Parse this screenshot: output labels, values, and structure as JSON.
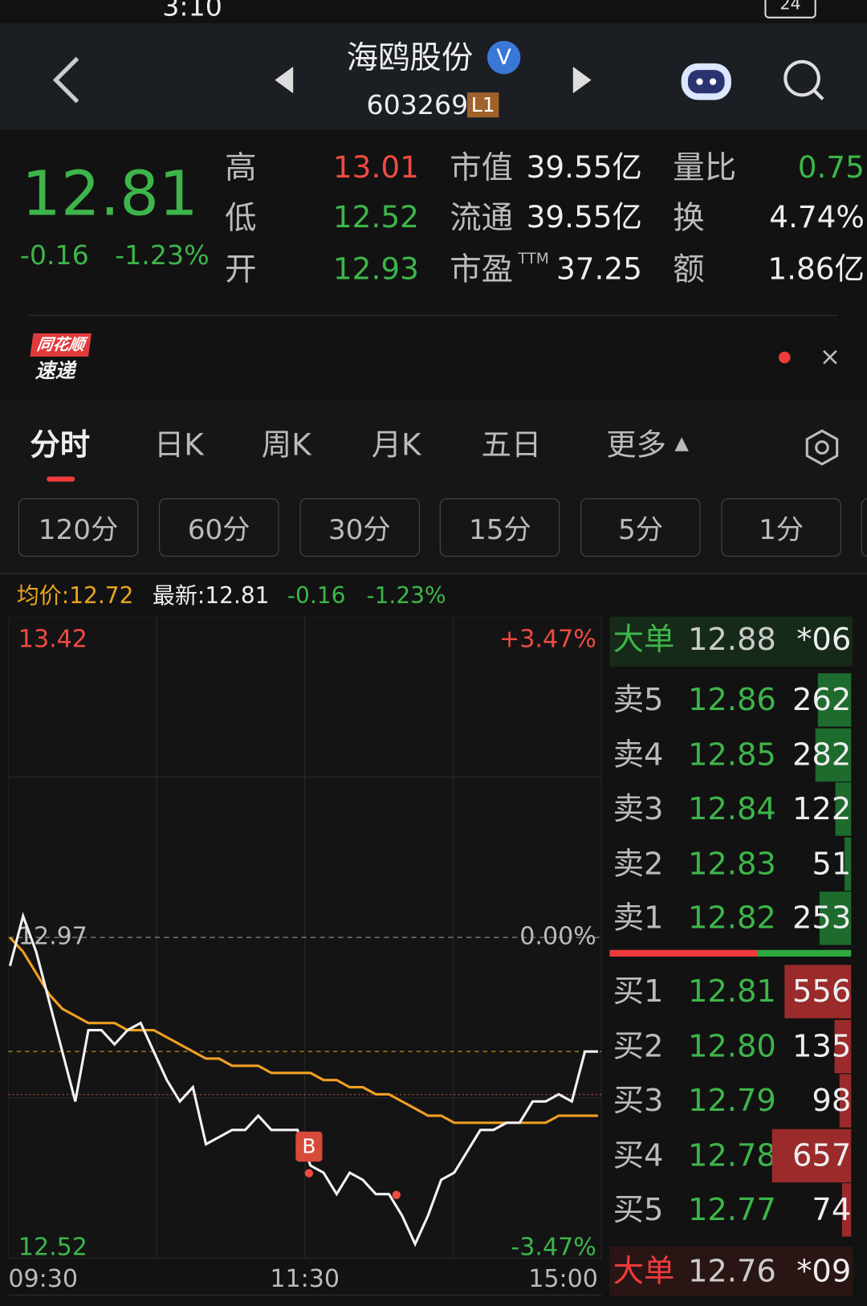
{
  "status": {
    "time": "3:10",
    "battery": "24"
  },
  "header": {
    "name": "海鸥股份",
    "verified": "V",
    "code": "603269",
    "badge": "L1"
  },
  "quote": {
    "price": "12.81",
    "change": "-0.16",
    "pct": "-1.23%",
    "stats": [
      [
        {
          "label": "高",
          "value": "13.01"
        },
        {
          "label": "低",
          "value": "12.52"
        },
        {
          "label": "开",
          "value": "12.93"
        }
      ],
      [
        {
          "label": "市值",
          "value": "39.55亿"
        },
        {
          "label": "流通",
          "value": "39.55亿"
        },
        {
          "label": "市盈",
          "sup": "TTM",
          "value": "37.25"
        }
      ],
      [
        {
          "label": "量比",
          "value": "0.75"
        },
        {
          "label": "换",
          "value": "4.74%"
        },
        {
          "label": "额",
          "value": "1.86亿"
        }
      ]
    ]
  },
  "news": {
    "logo_top": "同花顺",
    "logo_bottom": "速递"
  },
  "tabs": [
    "分时",
    "日K",
    "周K",
    "月K",
    "五日",
    "更多"
  ],
  "periods": [
    "120分",
    "60分",
    "30分",
    "15分",
    "5分",
    "1分"
  ],
  "info": {
    "avg": "均价:12.72",
    "latest": "最新:12.81",
    "change": "-0.16",
    "pct": "-1.23%"
  },
  "chart_data": {
    "type": "line",
    "ylim": [
      12.52,
      13.42
    ],
    "yticks": [
      13.42,
      12.97,
      12.52
    ],
    "right_labels": [
      "+3.47%",
      "0.00%",
      "-3.47%"
    ],
    "x_labels": [
      "09:30",
      "11:30",
      "15:00"
    ],
    "marker": "B",
    "last_price": 12.81,
    "series": [
      {
        "name": "price",
        "color": "#f2f2f2",
        "values": [
          12.93,
          13.0,
          12.95,
          12.88,
          12.81,
          12.74,
          12.84,
          12.84,
          12.82,
          12.84,
          12.85,
          12.81,
          12.77,
          12.74,
          12.76,
          12.68,
          12.69,
          12.7,
          12.7,
          12.72,
          12.7,
          12.7,
          12.7,
          12.65,
          12.64,
          12.61,
          12.64,
          12.63,
          12.61,
          12.61,
          12.58,
          12.54,
          12.58,
          12.63,
          12.64,
          12.67,
          12.7,
          12.7,
          12.71,
          12.71,
          12.74,
          12.74,
          12.75,
          12.74,
          12.81,
          12.81
        ]
      },
      {
        "name": "avg",
        "color": "#f0a020",
        "values": [
          12.97,
          12.95,
          12.92,
          12.89,
          12.87,
          12.86,
          12.85,
          12.85,
          12.85,
          12.84,
          12.84,
          12.84,
          12.83,
          12.82,
          12.81,
          12.8,
          12.8,
          12.79,
          12.79,
          12.79,
          12.78,
          12.78,
          12.78,
          12.78,
          12.77,
          12.77,
          12.76,
          12.76,
          12.75,
          12.75,
          12.74,
          12.73,
          12.72,
          12.72,
          12.71,
          12.71,
          12.71,
          12.71,
          12.71,
          12.71,
          12.71,
          12.71,
          12.72,
          12.72,
          12.72,
          12.72
        ]
      }
    ]
  },
  "orderbook": {
    "big_sell": {
      "label": "大单",
      "price": "12.88",
      "vol": "*06"
    },
    "asks": [
      {
        "label": "卖5",
        "price": "12.86",
        "vol": 262
      },
      {
        "label": "卖4",
        "price": "12.85",
        "vol": 282
      },
      {
        "label": "卖3",
        "price": "12.84",
        "vol": 122
      },
      {
        "label": "卖2",
        "price": "12.83",
        "vol": 51
      },
      {
        "label": "卖1",
        "price": "12.82",
        "vol": 253
      }
    ],
    "bids": [
      {
        "label": "买1",
        "price": "12.81",
        "vol": 556
      },
      {
        "label": "买2",
        "price": "12.80",
        "vol": 135
      },
      {
        "label": "买3",
        "price": "12.79",
        "vol": 98
      },
      {
        "label": "买4",
        "price": "12.78",
        "vol": 657
      },
      {
        "label": "买5",
        "price": "12.77",
        "vol": 74
      }
    ],
    "big_buy": {
      "label": "大单",
      "price": "12.76",
      "vol": "*09"
    }
  }
}
